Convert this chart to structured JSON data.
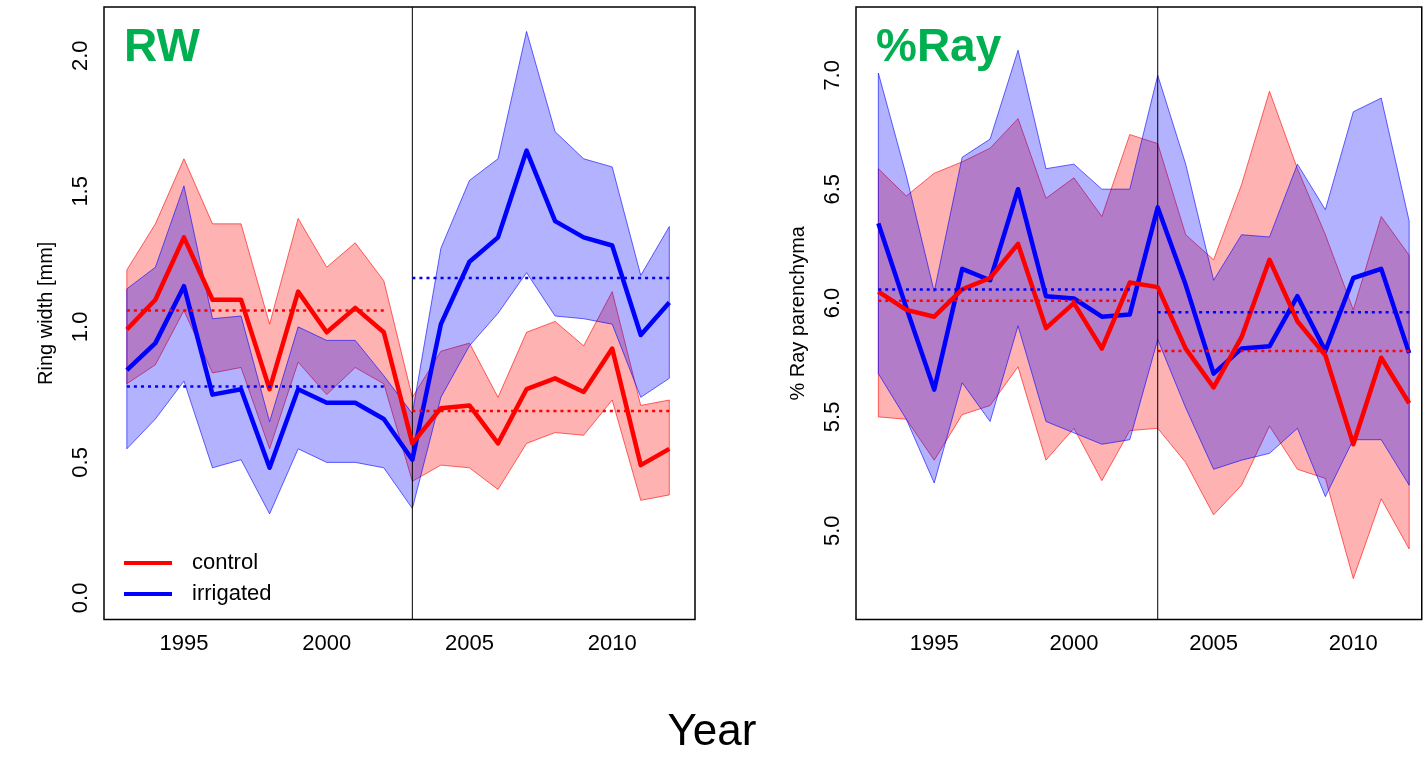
{
  "chart_data": [
    {
      "type": "line",
      "title": "RW",
      "xlabel": "Year",
      "ylabel": "Ring width [mm]",
      "x": [
        1993,
        1994,
        1995,
        1996,
        1997,
        1998,
        1999,
        2000,
        2001,
        2002,
        2003,
        2004,
        2005,
        2006,
        2007,
        2008,
        2009,
        2010,
        2011,
        2012
      ],
      "xlim": [
        1992.2,
        2012.9
      ],
      "xticks": [
        1995,
        2000,
        2005,
        2010
      ],
      "ylim": [
        -0.08,
        2.18
      ],
      "yticks": [
        {
          "value": 0,
          "label": "0.0"
        },
        {
          "value": 0.5,
          "label": "0.5"
        },
        {
          "value": 1,
          "label": "1.0"
        },
        {
          "value": 1.5,
          "label": "1.5"
        },
        {
          "value": 2,
          "label": "2.0"
        }
      ],
      "legend": "bottom left",
      "grid": false,
      "marker": "none",
      "line_style": "solid",
      "ref_lines": [
        {
          "axis": "x",
          "value": 2003,
          "color": "#000000"
        }
      ],
      "series": [
        {
          "name": "control",
          "color": "#ff0000",
          "values": [
            0.99,
            1.1,
            1.33,
            1.1,
            1.1,
            0.77,
            1.13,
            0.98,
            1.07,
            0.98,
            0.57,
            0.7,
            0.71,
            0.57,
            0.77,
            0.81,
            0.76,
            0.92,
            0.49,
            0.55
          ],
          "lower": [
            0.79,
            0.86,
            1.06,
            0.83,
            0.85,
            0.55,
            0.87,
            0.75,
            0.85,
            0.79,
            0.43,
            0.49,
            0.48,
            0.4,
            0.57,
            0.61,
            0.6,
            0.73,
            0.36,
            0.38
          ],
          "upper": [
            1.21,
            1.38,
            1.62,
            1.38,
            1.38,
            1.01,
            1.4,
            1.22,
            1.31,
            1.17,
            0.74,
            0.91,
            0.94,
            0.74,
            0.98,
            1.02,
            0.93,
            1.13,
            0.71,
            0.73
          ]
        },
        {
          "name": "irrigated",
          "color": "#0000ff",
          "values": [
            0.84,
            0.94,
            1.15,
            0.75,
            0.77,
            0.48,
            0.77,
            0.72,
            0.72,
            0.66,
            0.51,
            1.01,
            1.24,
            1.33,
            1.65,
            1.39,
            1.33,
            1.3,
            0.97,
            1.09
          ],
          "lower": [
            0.55,
            0.66,
            0.8,
            0.48,
            0.51,
            0.31,
            0.55,
            0.5,
            0.5,
            0.48,
            0.33,
            0.74,
            0.93,
            1.05,
            1.2,
            1.04,
            1.03,
            1.01,
            0.74,
            0.81
          ],
          "upper": [
            1.14,
            1.22,
            1.52,
            1.03,
            1.04,
            0.65,
            1.0,
            0.95,
            0.95,
            0.82,
            0.68,
            1.29,
            1.54,
            1.62,
            2.09,
            1.72,
            1.62,
            1.59,
            1.19,
            1.37
          ]
        },
        {
          "type": "line",
          "color": "#ff0000",
          "line_style": "dotted",
          "x": [
            1993,
            2002
          ],
          "values": [
            1.06,
            1.06
          ]
        },
        {
          "type": "line",
          "color": "#ff0000",
          "line_style": "dotted",
          "x": [
            2003,
            2012
          ],
          "values": [
            0.69,
            0.69
          ]
        },
        {
          "type": "line",
          "color": "#0000ff",
          "line_style": "dotted",
          "x": [
            1993,
            2002
          ],
          "values": [
            0.78,
            0.78
          ]
        },
        {
          "type": "line",
          "color": "#0000ff",
          "line_style": "dotted",
          "x": [
            2003,
            2012
          ],
          "values": [
            1.18,
            1.18
          ]
        }
      ]
    },
    {
      "type": "line",
      "title": "%Ray",
      "ylabel": "% Ray parenchyma",
      "x": [
        1993,
        1994,
        1995,
        1996,
        1997,
        1998,
        1999,
        2000,
        2001,
        2002,
        2003,
        2004,
        2005,
        2006,
        2007,
        2008,
        2009,
        2010,
        2011,
        2012
      ],
      "xlim": [
        1992.2,
        2012.45
      ],
      "xticks": [
        1995,
        2000,
        2005,
        2010
      ],
      "ylim": [
        4.61,
        7.3
      ],
      "yticks": [
        {
          "value": 5,
          "label": "5.0"
        },
        {
          "value": 5.5,
          "label": "5.5"
        },
        {
          "value": 6,
          "label": "6.0"
        },
        {
          "value": 6.5,
          "label": "6.5"
        },
        {
          "value": 7,
          "label": "7.0"
        }
      ],
      "grid": false,
      "marker": "none",
      "line_style": "solid",
      "ref_lines": [
        {
          "axis": "x",
          "value": 2003,
          "color": "#000000"
        }
      ],
      "series": [
        {
          "color": "#ff0000",
          "values": [
            6.05,
            5.97,
            5.94,
            6.06,
            6.11,
            6.26,
            5.89,
            6.0,
            5.8,
            6.09,
            6.07,
            5.8,
            5.63,
            5.85,
            6.19,
            5.92,
            5.77,
            5.38,
            5.76,
            5.56
          ],
          "lower": [
            5.5,
            5.49,
            5.31,
            5.51,
            5.55,
            5.72,
            5.31,
            5.45,
            5.22,
            5.44,
            5.45,
            5.3,
            5.07,
            5.2,
            5.46,
            5.27,
            5.23,
            4.79,
            5.14,
            4.92
          ],
          "upper": [
            6.59,
            6.47,
            6.57,
            6.62,
            6.68,
            6.81,
            6.46,
            6.55,
            6.38,
            6.74,
            6.7,
            6.3,
            6.19,
            6.52,
            6.93,
            6.59,
            6.3,
            5.97,
            6.38,
            6.21
          ]
        },
        {
          "color": "#0000ff",
          "values": [
            6.35,
            5.98,
            5.62,
            6.15,
            6.1,
            6.5,
            6.03,
            6.02,
            5.94,
            5.95,
            6.42,
            6.08,
            5.69,
            5.8,
            5.81,
            6.03,
            5.79,
            6.11,
            6.15,
            5.78
          ],
          "lower": [
            5.69,
            5.49,
            5.21,
            5.65,
            5.48,
            5.9,
            5.48,
            5.43,
            5.38,
            5.4,
            5.84,
            5.54,
            5.27,
            5.31,
            5.34,
            5.45,
            5.15,
            5.4,
            5.4,
            5.2
          ],
          "upper": [
            7.01,
            6.56,
            6.05,
            6.64,
            6.72,
            7.11,
            6.59,
            6.61,
            6.5,
            6.5,
            7.0,
            6.61,
            6.1,
            6.3,
            6.29,
            6.61,
            6.41,
            6.84,
            6.9,
            6.36
          ]
        },
        {
          "type": "line",
          "color": "#ff0000",
          "line_style": "dotted",
          "x": [
            1993,
            2002
          ],
          "values": [
            6.01,
            6.01
          ]
        },
        {
          "type": "line",
          "color": "#ff0000",
          "line_style": "dotted",
          "x": [
            2003,
            2012
          ],
          "values": [
            5.79,
            5.79
          ]
        },
        {
          "type": "line",
          "color": "#0000ff",
          "line_style": "dotted",
          "x": [
            1993,
            2002
          ],
          "values": [
            6.06,
            6.06
          ]
        },
        {
          "type": "line",
          "color": "#0000ff",
          "line_style": "dotted",
          "x": [
            2003,
            2012
          ],
          "values": [
            5.96,
            5.96
          ]
        }
      ]
    }
  ]
}
